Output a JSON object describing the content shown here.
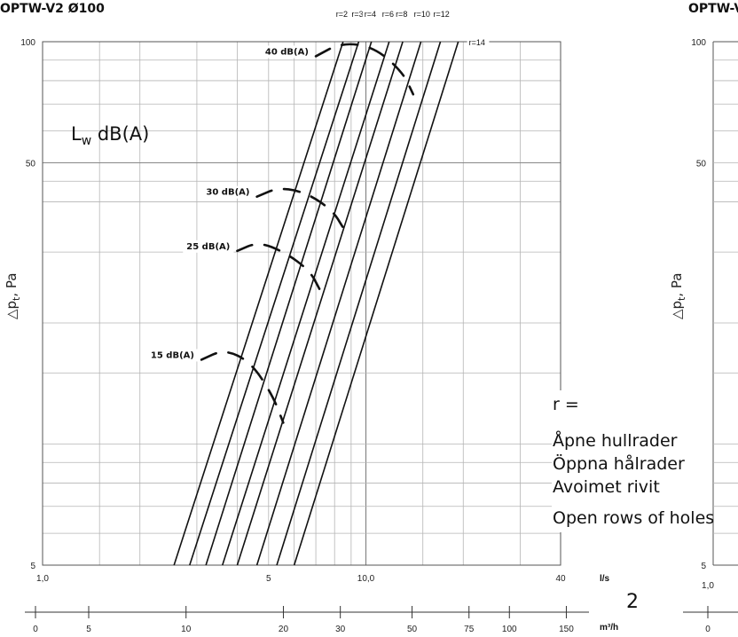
{
  "chart_data": {
    "type": "line",
    "title": "OPTW-V2 Ø100",
    "right_title_fragment": "OPTW-V",
    "x_scale": "log",
    "y_scale": "log",
    "xlim": [
      1,
      40
    ],
    "ylim": [
      5,
      100
    ],
    "xlabel": "l/s",
    "ylabel": "△p",
    "ylabel_sub": "t",
    "ylabel_unit": ", Pa",
    "x_ticks": [
      {
        "value": 1,
        "label": "1,0"
      },
      {
        "value": 5,
        "label": "5"
      },
      {
        "value": 10,
        "label": "10,0"
      },
      {
        "value": 40,
        "label": "40"
      }
    ],
    "y_ticks": [
      {
        "value": 100,
        "label": "100"
      },
      {
        "value": 50,
        "label": "50"
      },
      {
        "value": 5,
        "label": "5"
      }
    ],
    "secondary_axis": {
      "unit": "m³/h",
      "ticks": [
        "0",
        "5",
        "10",
        "20",
        "30",
        "50",
        "75",
        "100",
        "150"
      ]
    },
    "right_chart_fragment": {
      "y_ticks": [
        "100",
        "50",
        "5"
      ],
      "x_ticks": [
        "1,0"
      ],
      "m3h_ticks": [
        "0"
      ]
    },
    "series": [
      {
        "name": "r=2",
        "points": [
          [
            2.55,
            5
          ],
          [
            8.5,
            100
          ]
        ]
      },
      {
        "name": "r=3",
        "points": [
          [
            2.85,
            5
          ],
          [
            9.5,
            100
          ]
        ]
      },
      {
        "name": "r=4",
        "points": [
          [
            3.2,
            5
          ],
          [
            10.4,
            100
          ]
        ]
      },
      {
        "name": "r=6",
        "points": [
          [
            3.6,
            5
          ],
          [
            11.8,
            100
          ]
        ]
      },
      {
        "name": "r=8",
        "points": [
          [
            4.0,
            5
          ],
          [
            13.0,
            100
          ]
        ]
      },
      {
        "name": "r=10",
        "points": [
          [
            4.6,
            5
          ],
          [
            14.8,
            100
          ]
        ]
      },
      {
        "name": "r=12",
        "points": [
          [
            5.3,
            5
          ],
          [
            17.0,
            100
          ]
        ]
      },
      {
        "name": "r=14",
        "points": [
          [
            6.0,
            5
          ],
          [
            19.3,
            100
          ]
        ]
      }
    ],
    "sound_curves": [
      {
        "label": "15 dB(A)",
        "points": [
          [
            3.1,
            16.2
          ],
          [
            3.65,
            17.2
          ],
          [
            4.4,
            16.0
          ],
          [
            5.15,
            13.2
          ],
          [
            5.55,
            11.3
          ]
        ]
      },
      {
        "label": "25 dB(A)",
        "points": [
          [
            4.0,
            30.2
          ],
          [
            4.65,
            31.8
          ],
          [
            5.6,
            30.0
          ],
          [
            6.7,
            27.0
          ],
          [
            7.2,
            24.2
          ]
        ]
      },
      {
        "label": "30 dB(A)",
        "points": [
          [
            4.6,
            41.2
          ],
          [
            5.4,
            43.5
          ],
          [
            6.6,
            42.0
          ],
          [
            7.9,
            38.0
          ],
          [
            8.5,
            34.5
          ]
        ]
      },
      {
        "label": "40 dB(A)",
        "points": [
          [
            7.0,
            92.0
          ],
          [
            8.4,
            99.5
          ],
          [
            10.6,
            97.0
          ],
          [
            13.0,
            84.0
          ],
          [
            14.0,
            74.0
          ]
        ]
      }
    ],
    "curve_label": "L",
    "curve_label_sub": "w",
    "curve_label_unit": " dB(A)",
    "legend": {
      "heading": "r =",
      "lines": [
        "Åpne hullrader",
        "Öppna hålrader",
        "Avoimet rivit",
        "Open rows of holes"
      ]
    },
    "page_number": "2"
  }
}
